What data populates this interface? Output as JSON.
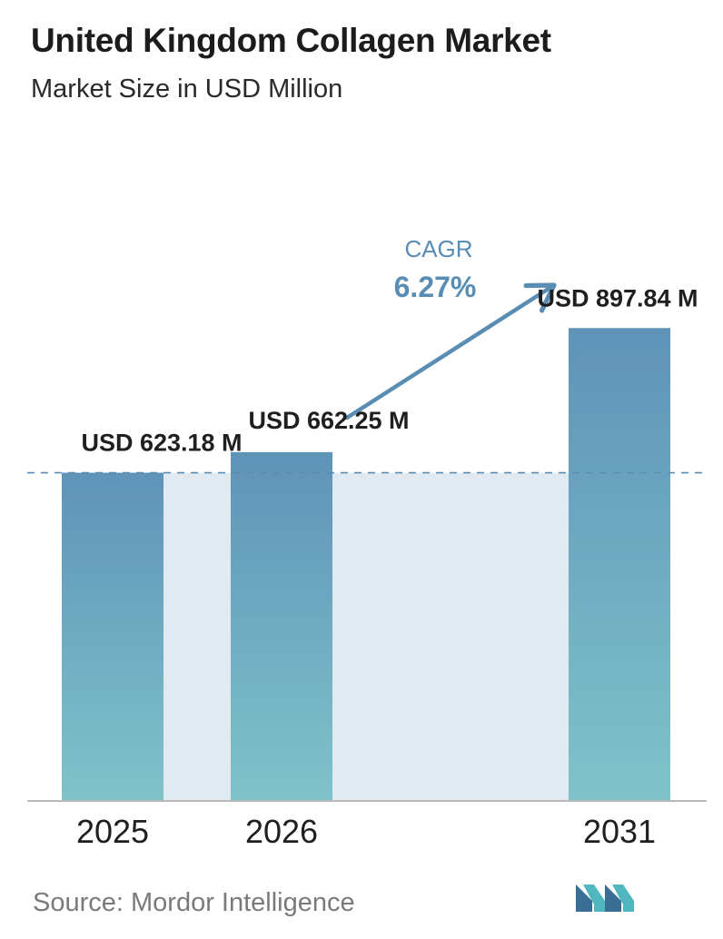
{
  "header": {
    "title": "United Kingdom Collagen Market",
    "subtitle": "Market Size in USD Million"
  },
  "footer": {
    "source": "Source:  Mordor Intelligence",
    "logo_icon": "mordor-intelligence-logo-icon"
  },
  "colors": {
    "bar_top": "#5f93b9",
    "bar_bottom": "#7fc3c9",
    "band": "#e2eaf1",
    "cagr_arrow": "#5a8db3",
    "cagr_text": "#5a8db3",
    "dashed_line": "#5a8db3",
    "axis": "#b9b9b9",
    "logo_dark": "#3a6f95",
    "logo_light": "#4fb7bd"
  },
  "chart_data": {
    "type": "bar",
    "title": "United Kingdom Collagen Market",
    "subtitle": "Market Size in USD Million",
    "categories": [
      "2025",
      "2026",
      "2031"
    ],
    "values": [
      623.18,
      662.25,
      897.84
    ],
    "value_labels": [
      "USD 623.18 M",
      "USD 662.25 M",
      "USD 897.84 M"
    ],
    "ylim": [
      0,
      1000
    ],
    "grid": false,
    "reference_line": 623.18,
    "cagr": {
      "label": "CAGR",
      "value": "6.27%"
    }
  }
}
